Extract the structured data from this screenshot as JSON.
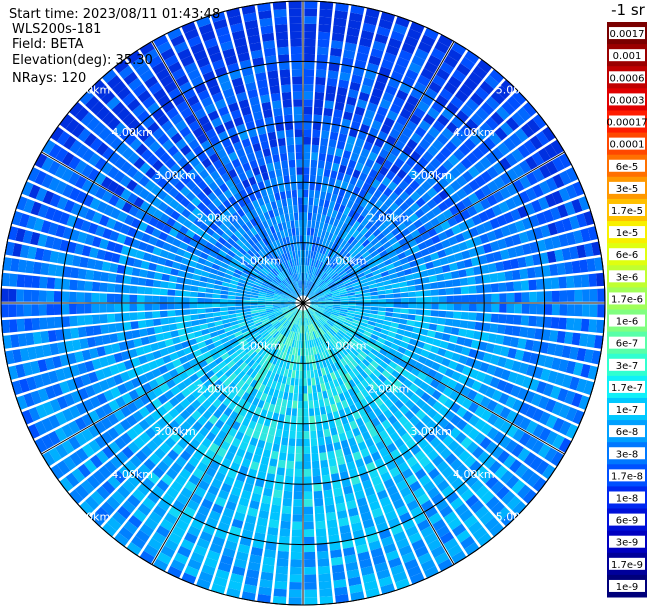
{
  "header": {
    "start_time": "Start time: 2023/08/11 01:43:48",
    "instrument": "WLS200s-181",
    "field": "Field: BETA",
    "elevation": "Elevation(deg): 35.30",
    "nrays": "NRays: 120"
  },
  "colorbar": {
    "unit": "-1 sr",
    "labels": [
      "0.0017",
      "0.001",
      "0.0006",
      "0.0003",
      "0.00017",
      "0.0001",
      "6e-5",
      "3e-5",
      "1.7e-5",
      "1e-5",
      "6e-6",
      "3e-6",
      "1.7e-6",
      "1e-6",
      "6e-7",
      "3e-7",
      "1.7e-7",
      "1e-7",
      "6e-8",
      "3e-8",
      "1.7e-8",
      "1e-8",
      "6e-9",
      "3e-9",
      "1.7e-9",
      "1e-9"
    ],
    "colors": [
      "#7a0000",
      "#9a0000",
      "#c00000",
      "#e00000",
      "#ff1c00",
      "#ff4800",
      "#ff7000",
      "#ff9800",
      "#ffc000",
      "#f8f000",
      "#e0ff10",
      "#c0ff30",
      "#a0ff58",
      "#80ff80",
      "#58ffa8",
      "#30ffd0",
      "#10f0f8",
      "#00c8ff",
      "#00a0ff",
      "#0078ff",
      "#0050ff",
      "#0028f0",
      "#0010d8",
      "#0000c0",
      "#00009a",
      "#00007a"
    ]
  },
  "chart_data": {
    "type": "heatmap",
    "projection": "polar (PPI)",
    "nrays": 120,
    "max_range_km": 5.0,
    "range_rings_km": [
      1.0,
      2.0,
      3.0,
      4.0,
      5.0
    ],
    "range_labels": [
      "1.00km",
      "2.00km",
      "3.00km",
      "4.00km",
      "5.00km"
    ],
    "field": "BETA",
    "unit": "sr-1",
    "value_range": [
      1e-09,
      0.0017
    ]
  }
}
